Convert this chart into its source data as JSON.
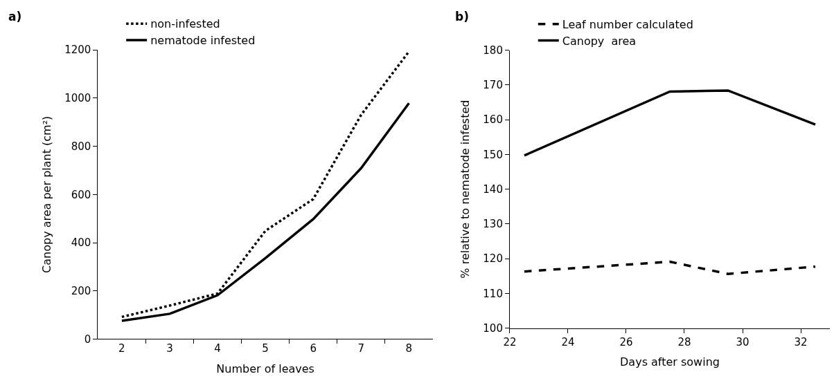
{
  "chart_data": [
    {
      "type": "line",
      "title": "a)",
      "xlabel": "Number of leaves",
      "ylabel": "Canopy area per plant (cm²)",
      "categories": [
        "2",
        "3",
        "4",
        "5",
        "6",
        "7",
        "8"
      ],
      "ylim": [
        0,
        1200
      ],
      "yticks": [
        0,
        200,
        400,
        600,
        800,
        1000,
        1200
      ],
      "legend": "top left",
      "marker": "none",
      "series": [
        {
          "name": "non-infested",
          "color": "#000000",
          "line_style": "dotted",
          "values": [
            92,
            139,
            189,
            449,
            581,
            930,
            1193
          ]
        },
        {
          "name": "nematode infested",
          "color": "#000000",
          "line_style": "solid",
          "values": [
            76,
            105,
            182,
            336,
            498,
            709,
            979
          ]
        }
      ]
    },
    {
      "type": "line",
      "title": "b)",
      "xlabel": "Days after sowing",
      "ylabel": "% relative to nematode infested",
      "x": [
        22.5,
        27.5,
        29.5,
        32.5
      ],
      "xlim": [
        22,
        33
      ],
      "xticks": [
        22,
        24,
        26,
        28,
        30,
        32
      ],
      "ylim": [
        100,
        180
      ],
      "yticks": [
        100,
        110,
        120,
        130,
        140,
        150,
        160,
        170,
        180
      ],
      "legend": "top left",
      "marker": "none",
      "series": [
        {
          "name": "Leaf number calculated",
          "color": "#000000",
          "line_style": "dashed",
          "values": [
            116.3,
            119.1,
            115.6,
            117.7
          ]
        },
        {
          "name": "Canopy  area",
          "color": "#000000",
          "line_style": "solid",
          "values": [
            149.7,
            168.1,
            168.4,
            158.6
          ]
        }
      ]
    }
  ]
}
